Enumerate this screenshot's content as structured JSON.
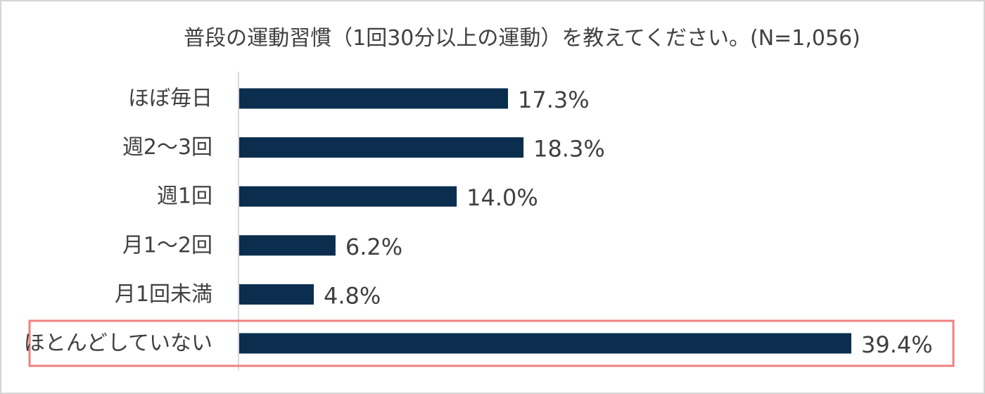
{
  "chart_data": {
    "type": "bar",
    "orientation": "horizontal",
    "title": "普段の運動習慣（1回30分以上の運動）を教えてください。(N=1,056)",
    "categories": [
      "ほぼ毎日",
      "週2～3回",
      "週1回",
      "月1～2回",
      "月1回未満",
      "ほとんどしていない"
    ],
    "values": [
      17.3,
      18.3,
      14.0,
      6.2,
      4.8,
      39.4
    ],
    "value_labels": [
      "17.3%",
      "18.3%",
      "14.0%",
      "6.2%",
      "4.8%",
      "39.4%"
    ],
    "unit": "%",
    "xlim": [
      0,
      39.4
    ],
    "grid": false,
    "legend": "none",
    "highlight_category": "ほとんどしていない",
    "bar_color": "#0b2e4f",
    "highlight_border_color": "#f08080",
    "axis_color": "#d9d9d9",
    "text_color": "#404040"
  }
}
